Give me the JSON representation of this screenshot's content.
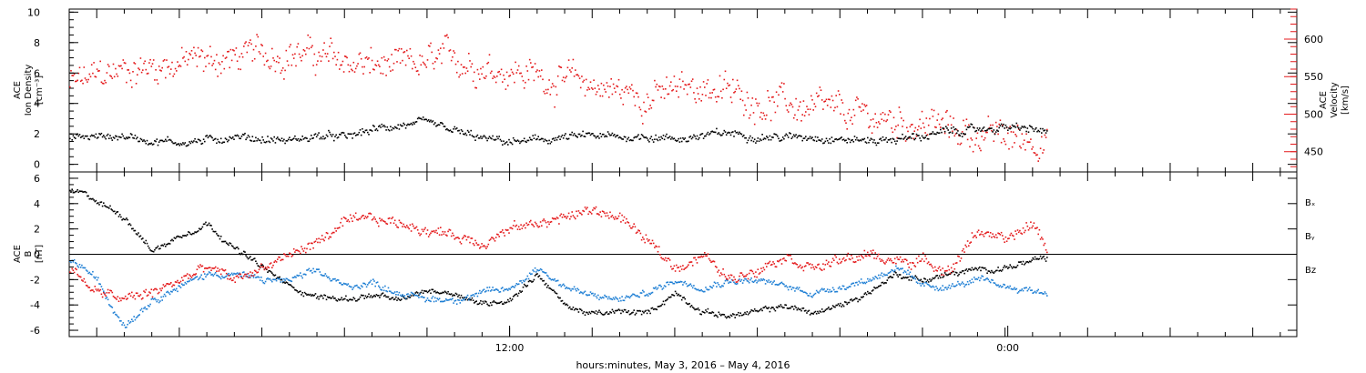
{
  "chart_data": [
    {
      "type": "scatter",
      "panel": "top",
      "left_axis": {
        "label_lines": [
          "ACE",
          "Ion Density",
          "[cm⁻³]"
        ],
        "ticks": [
          0,
          2,
          4,
          6,
          8,
          10
        ],
        "ylim": [
          -0.5,
          10.2
        ]
      },
      "right_axis": {
        "label_lines": [
          "ACE",
          "Velocity",
          "[km/s]"
        ],
        "ticks": [
          450,
          500,
          550,
          600
        ],
        "ylim": [
          423,
          640
        ],
        "color": "#e41a1c"
      },
      "series": [
        {
          "color": "#000000",
          "axis": "left",
          "anchors": [
            [
              0,
              1.8
            ],
            [
              2,
              1.9
            ],
            [
              3,
              1.6
            ],
            [
              4,
              1.5
            ],
            [
              5,
              1.6
            ],
            [
              6,
              1.9
            ],
            [
              7,
              1.7
            ],
            [
              8,
              1.6
            ],
            [
              9,
              1.9
            ],
            [
              10,
              1.8
            ],
            [
              11,
              2.3
            ],
            [
              12,
              2.6
            ],
            [
              13,
              2.7
            ],
            [
              14,
              2.2
            ],
            [
              15,
              1.7
            ],
            [
              16,
              1.5
            ],
            [
              17,
              1.6
            ],
            [
              18,
              1.8
            ],
            [
              19,
              1.9
            ],
            [
              20,
              1.8
            ],
            [
              21,
              1.9
            ],
            [
              22,
              1.7
            ],
            [
              23,
              1.9
            ],
            [
              24,
              2.1
            ],
            [
              25,
              1.9
            ],
            [
              26,
              1.8
            ],
            [
              27,
              1.9
            ],
            [
              28,
              1.7
            ],
            [
              29,
              1.6
            ],
            [
              30,
              1.7
            ],
            [
              31,
              1.9
            ],
            [
              32,
              2.2
            ],
            [
              33,
              2.3
            ],
            [
              34,
              2.5
            ],
            [
              35,
              2.3
            ],
            [
              35.5,
              2.2
            ]
          ],
          "spread": 0.35
        },
        {
          "color": "#e41a1c",
          "axis": "right",
          "anchors": [
            [
              0,
              540
            ],
            [
              2,
              560
            ],
            [
              4,
              570
            ],
            [
              6,
              575
            ],
            [
              8,
              585
            ],
            [
              10,
              570
            ],
            [
              12,
              560
            ],
            [
              14,
              575
            ],
            [
              16,
              560
            ],
            [
              18,
              545
            ],
            [
              19,
              540
            ],
            [
              20,
              530
            ],
            [
              21,
              525
            ],
            [
              22,
              530
            ],
            [
              23,
              540
            ],
            [
              24,
              528
            ],
            [
              25,
              520
            ],
            [
              26,
              514
            ],
            [
              27,
              506
            ],
            [
              28,
              500
            ],
            [
              29,
              496
            ],
            [
              30,
              492
            ],
            [
              31,
              490
            ],
            [
              32,
              480
            ],
            [
              33,
              475
            ],
            [
              34,
              470
            ],
            [
              35,
              468
            ],
            [
              35.5,
              470
            ]
          ],
          "spread": 28
        }
      ]
    },
    {
      "type": "scatter",
      "panel": "bottom",
      "left_axis": {
        "label_lines": [
          "ACE",
          "B",
          "[nT]"
        ],
        "ticks": [
          -6,
          -4,
          -2,
          0,
          2,
          4,
          6
        ],
        "ylim": [
          -6.5,
          6.5
        ]
      },
      "zero_line": 0,
      "series": [
        {
          "name": "Bₓ",
          "color": "#000000",
          "anchors": [
            [
              0,
              5
            ],
            [
              0.5,
              4.8
            ],
            [
              1,
              4.2
            ],
            [
              2,
              3
            ],
            [
              3,
              0.3
            ],
            [
              4,
              1.5
            ],
            [
              5,
              2.5
            ],
            [
              6,
              0.5
            ],
            [
              7,
              -1
            ],
            [
              8,
              -2.5
            ],
            [
              9,
              -3.3
            ],
            [
              10,
              -3.5
            ],
            [
              11,
              -3.2
            ],
            [
              12,
              -3.6
            ],
            [
              13,
              -2.8
            ],
            [
              14,
              -3
            ],
            [
              15,
              -3.9
            ],
            [
              16,
              -3.5
            ],
            [
              17,
              -1.5
            ],
            [
              18,
              -4
            ],
            [
              19,
              -4.7
            ],
            [
              20,
              -4.5
            ],
            [
              21,
              -4.6
            ],
            [
              22,
              -3
            ],
            [
              23,
              -4.5
            ],
            [
              24,
              -4.8
            ],
            [
              25,
              -4.5
            ],
            [
              26,
              -4
            ],
            [
              27,
              -4.6
            ],
            [
              28,
              -4
            ],
            [
              29,
              -3
            ],
            [
              30,
              -1.5
            ],
            [
              31,
              -2
            ],
            [
              32,
              -1.5
            ],
            [
              33,
              -1.2
            ],
            [
              34,
              -1
            ],
            [
              35,
              -0.5
            ],
            [
              35.5,
              -0.3
            ]
          ],
          "spread": 0.3
        },
        {
          "name": "Bᵧ",
          "color": "#1f7fd4",
          "anchors": [
            [
              0,
              -0.5
            ],
            [
              0.5,
              -1
            ],
            [
              1,
              -2
            ],
            [
              1.5,
              -4
            ],
            [
              2,
              -5.5
            ],
            [
              3,
              -3.5
            ],
            [
              4,
              -2.5
            ],
            [
              5,
              -1.5
            ],
            [
              6,
              -1.5
            ],
            [
              7,
              -2
            ],
            [
              8,
              -2
            ],
            [
              9,
              -1.3
            ],
            [
              10,
              -2.5
            ],
            [
              11,
              -2.2
            ],
            [
              12,
              -3
            ],
            [
              13,
              -3.5
            ],
            [
              14,
              -3.5
            ],
            [
              15,
              -3
            ],
            [
              16,
              -2.7
            ],
            [
              17,
              -1
            ],
            [
              18,
              -2.5
            ],
            [
              19,
              -3.3
            ],
            [
              20,
              -3.5
            ],
            [
              21,
              -3
            ],
            [
              22,
              -2
            ],
            [
              23,
              -2.5
            ],
            [
              24,
              -2
            ],
            [
              25,
              -2
            ],
            [
              26,
              -2.5
            ],
            [
              27,
              -3
            ],
            [
              28,
              -2.5
            ],
            [
              29,
              -2
            ],
            [
              30,
              -1
            ],
            [
              31,
              -2.5
            ],
            [
              32,
              -2.5
            ],
            [
              33,
              -2
            ],
            [
              34,
              -2.5
            ],
            [
              35,
              -2.8
            ],
            [
              35.5,
              -3
            ]
          ],
          "spread": 0.35
        },
        {
          "name": "Bz",
          "color": "#e41a1c",
          "anchors": [
            [
              0,
              -1
            ],
            [
              1,
              -3
            ],
            [
              2,
              -3.5
            ],
            [
              3,
              -3
            ],
            [
              4,
              -2
            ],
            [
              5,
              -1
            ],
            [
              6,
              -2
            ],
            [
              7,
              -1
            ],
            [
              8,
              0
            ],
            [
              9,
              1
            ],
            [
              10,
              2.5
            ],
            [
              11,
              2.8
            ],
            [
              12,
              2.5
            ],
            [
              13,
              2
            ],
            [
              14,
              1.5
            ],
            [
              15,
              1
            ],
            [
              16,
              2
            ],
            [
              17,
              2.5
            ],
            [
              18,
              3
            ],
            [
              19,
              3.5
            ],
            [
              20,
              3
            ],
            [
              21,
              1
            ],
            [
              22,
              -1
            ],
            [
              23,
              0
            ],
            [
              24,
              -2
            ],
            [
              25,
              -1
            ],
            [
              26,
              0
            ],
            [
              27,
              -1
            ],
            [
              28,
              -0.5
            ],
            [
              29,
              0
            ],
            [
              30,
              -0.5
            ],
            [
              31,
              -0.5
            ],
            [
              32,
              -1.2
            ],
            [
              33,
              2
            ],
            [
              34,
              1
            ],
            [
              35,
              2.5
            ],
            [
              35.5,
              0.5
            ]
          ],
          "spread": 0.55
        }
      ],
      "legend_placement": "right"
    }
  ],
  "x_axis": {
    "tick_labels": [
      {
        "at": 16,
        "label": "12:00"
      },
      {
        "at": 34.1,
        "label": "0:00"
      }
    ],
    "xlabel": "hours:minutes, May  3, 2016 – May  4, 2016",
    "xlim": [
      0,
      44.6
    ],
    "data_end": 35.5
  }
}
